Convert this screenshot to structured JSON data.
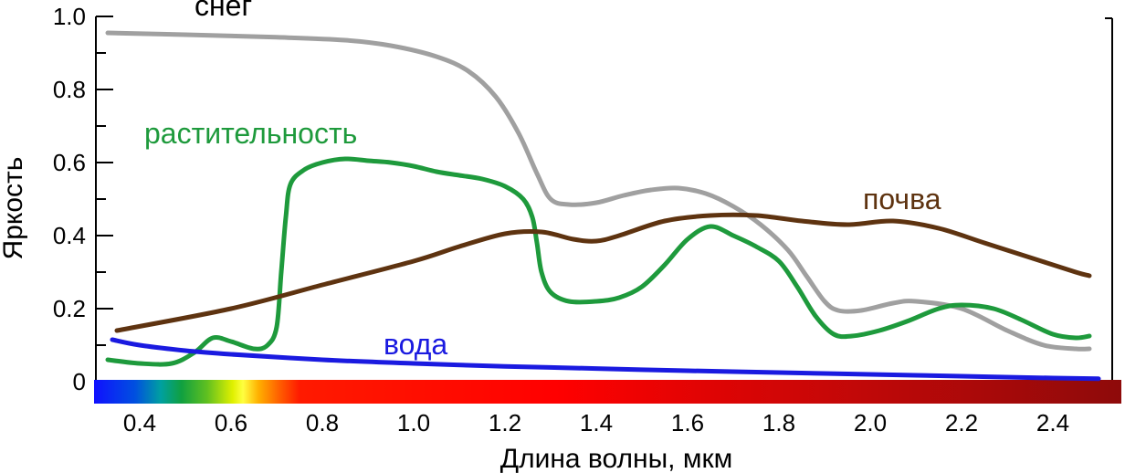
{
  "chart_data": {
    "type": "line",
    "xlabel": "Длина волны, мкм",
    "ylabel": "Яркость",
    "xlim": [
      0.3,
      2.55
    ],
    "ylim": [
      0,
      1.0
    ],
    "x_ticks": [
      0.4,
      0.6,
      0.8,
      1.0,
      1.2,
      1.4,
      1.6,
      1.8,
      2.0,
      2.2,
      2.4
    ],
    "x_tick_labels": [
      "0.4",
      "0.6",
      "0.8",
      "1.0",
      "1.2",
      "1.4",
      "1.6",
      "1.8",
      "2.0",
      "2.2",
      "2.4"
    ],
    "y_ticks": [
      0,
      0.2,
      0.4,
      0.6,
      0.8,
      1.0
    ],
    "y_tick_labels": [
      "0",
      "0.2",
      "0.4",
      "0.6",
      "0.8",
      "1.0"
    ],
    "grid": false,
    "spectrum_bar": true,
    "series": [
      {
        "name": "снег",
        "color": "#a0a0a0",
        "points": [
          [
            0.33,
            0.955
          ],
          [
            0.5,
            0.95
          ],
          [
            0.7,
            0.943
          ],
          [
            0.85,
            0.935
          ],
          [
            0.95,
            0.92
          ],
          [
            1.05,
            0.89
          ],
          [
            1.12,
            0.85
          ],
          [
            1.18,
            0.78
          ],
          [
            1.23,
            0.68
          ],
          [
            1.27,
            0.57
          ],
          [
            1.3,
            0.5
          ],
          [
            1.34,
            0.485
          ],
          [
            1.4,
            0.49
          ],
          [
            1.46,
            0.51
          ],
          [
            1.52,
            0.525
          ],
          [
            1.58,
            0.53
          ],
          [
            1.64,
            0.515
          ],
          [
            1.7,
            0.48
          ],
          [
            1.76,
            0.43
          ],
          [
            1.82,
            0.36
          ],
          [
            1.86,
            0.29
          ],
          [
            1.9,
            0.22
          ],
          [
            1.93,
            0.195
          ],
          [
            1.98,
            0.195
          ],
          [
            2.05,
            0.215
          ],
          [
            2.1,
            0.22
          ],
          [
            2.2,
            0.2
          ],
          [
            2.3,
            0.14
          ],
          [
            2.38,
            0.1
          ],
          [
            2.45,
            0.09
          ],
          [
            2.48,
            0.09
          ]
        ]
      },
      {
        "name": "растительность",
        "color": "#1e9a3c",
        "points": [
          [
            0.33,
            0.06
          ],
          [
            0.4,
            0.05
          ],
          [
            0.47,
            0.05
          ],
          [
            0.52,
            0.08
          ],
          [
            0.56,
            0.12
          ],
          [
            0.6,
            0.11
          ],
          [
            0.65,
            0.09
          ],
          [
            0.68,
            0.1
          ],
          [
            0.7,
            0.15
          ],
          [
            0.71,
            0.3
          ],
          [
            0.72,
            0.45
          ],
          [
            0.73,
            0.54
          ],
          [
            0.76,
            0.58
          ],
          [
            0.8,
            0.6
          ],
          [
            0.85,
            0.61
          ],
          [
            0.9,
            0.605
          ],
          [
            0.95,
            0.6
          ],
          [
            1.0,
            0.59
          ],
          [
            1.05,
            0.575
          ],
          [
            1.1,
            0.565
          ],
          [
            1.15,
            0.555
          ],
          [
            1.2,
            0.535
          ],
          [
            1.24,
            0.5
          ],
          [
            1.26,
            0.45
          ],
          [
            1.27,
            0.38
          ],
          [
            1.28,
            0.3
          ],
          [
            1.3,
            0.245
          ],
          [
            1.34,
            0.22
          ],
          [
            1.4,
            0.22
          ],
          [
            1.45,
            0.23
          ],
          [
            1.5,
            0.26
          ],
          [
            1.55,
            0.32
          ],
          [
            1.6,
            0.39
          ],
          [
            1.65,
            0.425
          ],
          [
            1.7,
            0.4
          ],
          [
            1.75,
            0.37
          ],
          [
            1.8,
            0.33
          ],
          [
            1.84,
            0.26
          ],
          [
            1.88,
            0.18
          ],
          [
            1.92,
            0.13
          ],
          [
            1.96,
            0.125
          ],
          [
            2.02,
            0.14
          ],
          [
            2.08,
            0.165
          ],
          [
            2.15,
            0.2
          ],
          [
            2.2,
            0.21
          ],
          [
            2.27,
            0.2
          ],
          [
            2.33,
            0.17
          ],
          [
            2.4,
            0.13
          ],
          [
            2.45,
            0.12
          ],
          [
            2.48,
            0.125
          ]
        ]
      },
      {
        "name": "почва",
        "color": "#5e3310",
        "points": [
          [
            0.35,
            0.14
          ],
          [
            0.6,
            0.2
          ],
          [
            0.8,
            0.265
          ],
          [
            1.0,
            0.33
          ],
          [
            1.1,
            0.37
          ],
          [
            1.2,
            0.405
          ],
          [
            1.28,
            0.41
          ],
          [
            1.35,
            0.39
          ],
          [
            1.4,
            0.385
          ],
          [
            1.45,
            0.4
          ],
          [
            1.55,
            0.44
          ],
          [
            1.65,
            0.455
          ],
          [
            1.75,
            0.455
          ],
          [
            1.85,
            0.44
          ],
          [
            1.95,
            0.43
          ],
          [
            2.05,
            0.44
          ],
          [
            2.15,
            0.42
          ],
          [
            2.25,
            0.38
          ],
          [
            2.35,
            0.34
          ],
          [
            2.45,
            0.3
          ],
          [
            2.48,
            0.29
          ]
        ]
      },
      {
        "name": "вода",
        "color": "#1a1ae0",
        "points": [
          [
            0.34,
            0.115
          ],
          [
            0.4,
            0.1
          ],
          [
            0.5,
            0.085
          ],
          [
            0.6,
            0.075
          ],
          [
            0.8,
            0.06
          ],
          [
            1.0,
            0.05
          ],
          [
            1.2,
            0.042
          ],
          [
            1.4,
            0.036
          ],
          [
            1.6,
            0.03
          ],
          [
            1.8,
            0.025
          ],
          [
            2.0,
            0.02
          ],
          [
            2.2,
            0.015
          ],
          [
            2.4,
            0.01
          ],
          [
            2.5,
            0.008
          ]
        ]
      }
    ],
    "labels": {
      "snow": "снег",
      "vegetation": "растительность",
      "soil": "почва",
      "water": "вода"
    }
  }
}
